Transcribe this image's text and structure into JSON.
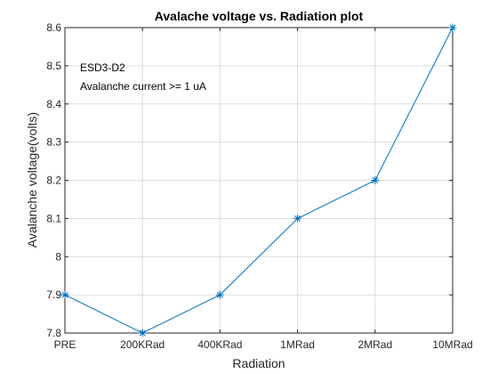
{
  "chart_data": {
    "type": "line",
    "title": "Avalache voltage vs. Radiation plot",
    "xlabel": "Radiation",
    "ylabel": "Avalanche voltage(volts)",
    "categories": [
      "PRE",
      "200KRad",
      "400KRad",
      "1MRad",
      "2MRad",
      "10MRad"
    ],
    "series": [
      {
        "values": [
          7.9,
          7.8,
          7.9,
          8.1,
          8.2,
          8.6
        ],
        "color": "#0072BD",
        "marker": "asterisk"
      }
    ],
    "ylim": [
      7.8,
      8.6
    ],
    "yticks": [
      7.8,
      7.9,
      8,
      8.1,
      8.2,
      8.3,
      8.4,
      8.5,
      8.6
    ],
    "grid": true,
    "annotations": [
      "ESD3-D2",
      "Avalanche current >= 1 uA"
    ]
  }
}
